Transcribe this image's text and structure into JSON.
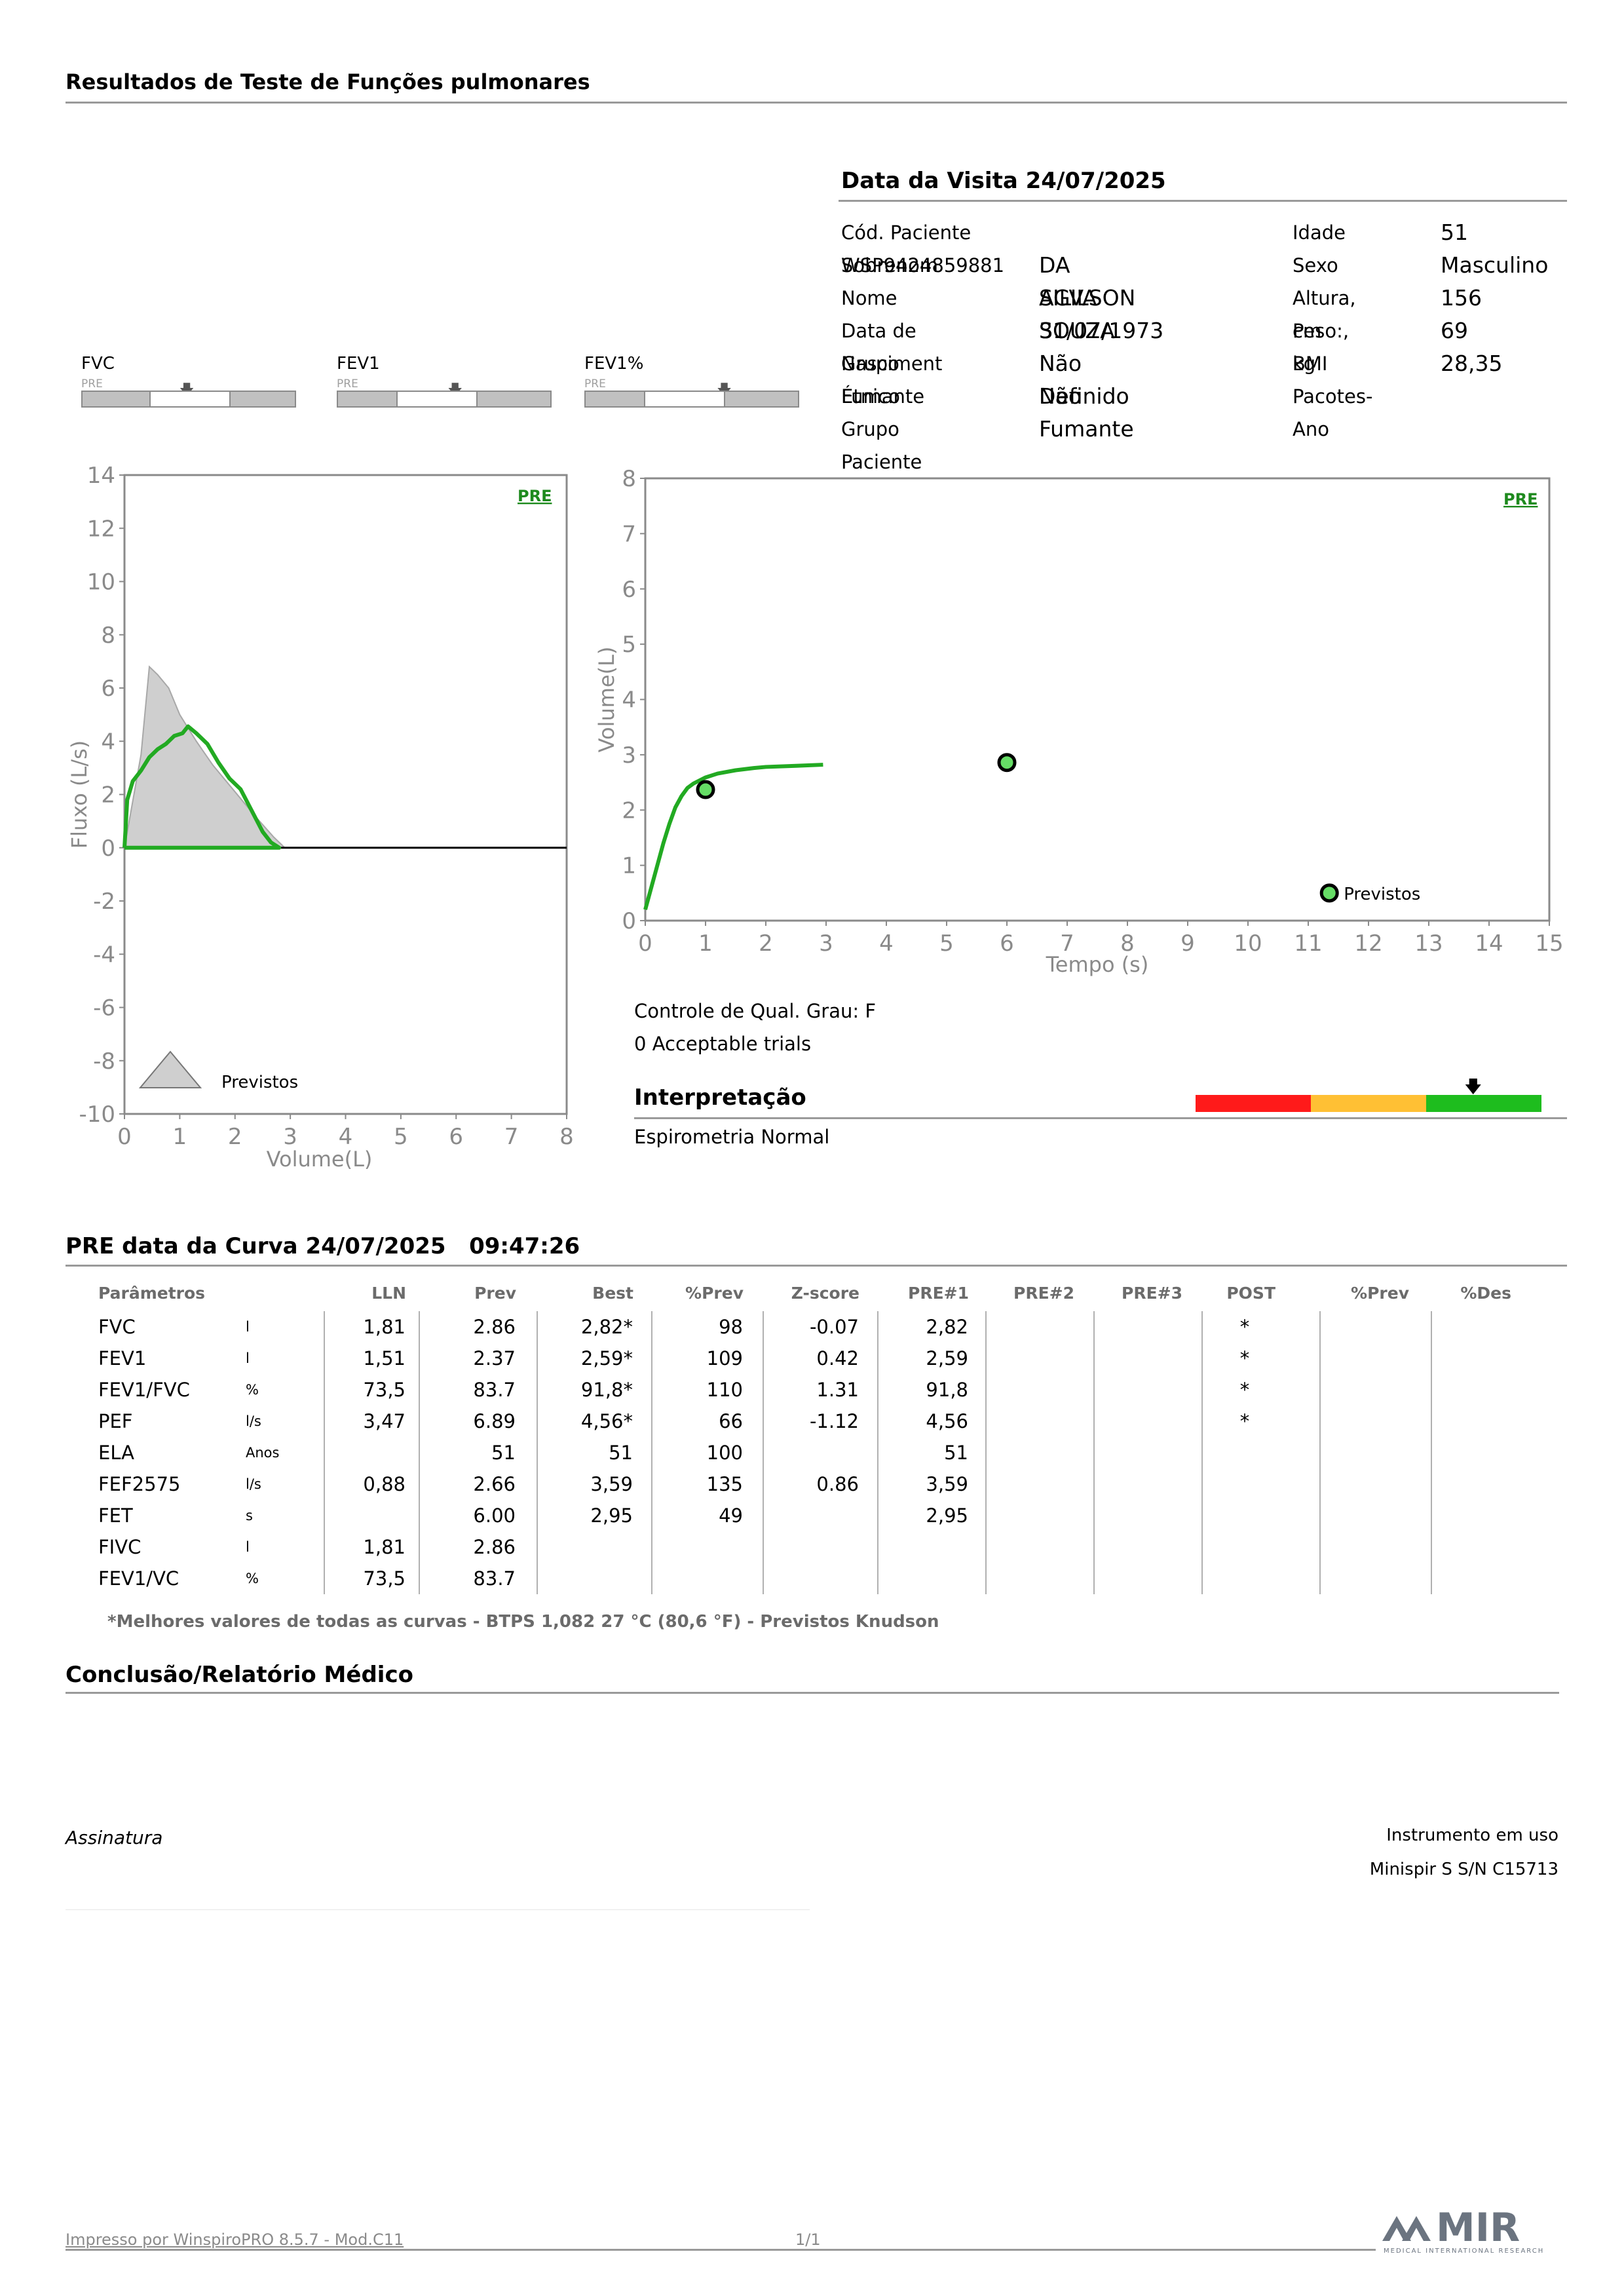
{
  "header": {
    "title": "Resultados de Teste de Funções pulmonares"
  },
  "visit": {
    "title": "Data da Visita 24/07/2025"
  },
  "patient": {
    "left": [
      {
        "label": "Cód. Paciente WSP9424859881",
        "value": ""
      },
      {
        "label": "Sobrenom",
        "value": "DA SILVA SOUZA"
      },
      {
        "label": "Nome",
        "value": "AGILSON"
      },
      {
        "label": "Data de Nasciment",
        "value": "31/07/1973"
      },
      {
        "label": "Grupo Étnico",
        "value": "Não Definido"
      },
      {
        "label": "Fumante",
        "value": "Não Fumante"
      },
      {
        "label": "Grupo Paciente",
        "value": ""
      }
    ],
    "right": [
      {
        "label": "Idade",
        "value": "51"
      },
      {
        "label": "Sexo",
        "value": "Masculino"
      },
      {
        "label": "Altura, cm",
        "value": "156"
      },
      {
        "label": "Peso:, kg",
        "value": "69"
      },
      {
        "label": "BMI",
        "value": "28,35"
      },
      {
        "label": "Pacotes-Ano",
        "value": ""
      }
    ]
  },
  "gauges": [
    {
      "name": "FVC",
      "tag": "PRE",
      "white_from": 0.31,
      "white_to": 0.69,
      "arrow_at": 0.49
    },
    {
      "name": "FEV1",
      "tag": "PRE",
      "white_from": 0.27,
      "white_to": 0.65,
      "arrow_at": 0.55
    },
    {
      "name": "FEV1%",
      "tag": "PRE",
      "white_from": 0.27,
      "white_to": 0.65,
      "arrow_at": 0.65
    }
  ],
  "chart_data": [
    {
      "type": "line",
      "name": "flow-volume",
      "ylabel": "Fluxo (L/s)",
      "xlabel": "Volume(L)",
      "xlim": [
        0,
        8
      ],
      "ylim": [
        -10,
        14
      ],
      "xticks": [
        "0",
        "1",
        "2",
        "3",
        "4",
        "5",
        "6",
        "7",
        "8"
      ],
      "yticks": [
        "14",
        "12",
        "10",
        "8",
        "6",
        "4",
        "2",
        "0",
        "-2",
        "-4",
        "-6",
        "-8",
        "-10"
      ],
      "tag": "PRE",
      "legend": "Previstos",
      "predicted_area": {
        "x": [
          0,
          0.3,
          0.45,
          0.6,
          0.8,
          1.0,
          1.3,
          1.6,
          2.0,
          2.4,
          2.7,
          2.9
        ],
        "y": [
          0,
          3.5,
          6.8,
          6.5,
          6.0,
          5.0,
          4.0,
          3.1,
          2.1,
          1.1,
          0.4,
          0
        ]
      },
      "series": [
        {
          "name": "PRE",
          "color": "#22aa22",
          "x": [
            0,
            0.05,
            0.15,
            0.3,
            0.45,
            0.6,
            0.75,
            0.9,
            1.05,
            1.15,
            1.3,
            1.5,
            1.7,
            1.9,
            2.1,
            2.3,
            2.5,
            2.65,
            2.8,
            2.3,
            1.5,
            0.6,
            0
          ],
          "y": [
            0,
            1.8,
            2.5,
            2.9,
            3.4,
            3.7,
            3.9,
            4.2,
            4.3,
            4.56,
            4.3,
            3.9,
            3.2,
            2.6,
            2.2,
            1.4,
            0.6,
            0.2,
            0,
            0,
            0,
            0,
            0
          ]
        }
      ]
    },
    {
      "type": "line",
      "name": "volume-time",
      "ylabel": "Volume(L)",
      "xlabel": "Tempo (s)",
      "xlim": [
        0,
        15
      ],
      "ylim": [
        0,
        8
      ],
      "xticks": [
        "0",
        "1",
        "2",
        "3",
        "4",
        "5",
        "6",
        "7",
        "8",
        "9",
        "10",
        "11",
        "12",
        "13",
        "14",
        "15"
      ],
      "yticks": [
        "8",
        "7",
        "6",
        "5",
        "4",
        "3",
        "2",
        "1",
        "0"
      ],
      "tag": "PRE",
      "legend": "Previstos",
      "predicted_points": [
        {
          "x": 1.0,
          "y": 2.37
        },
        {
          "x": 6.0,
          "y": 2.86
        }
      ],
      "series": [
        {
          "name": "PRE",
          "color": "#22aa22",
          "x": [
            0,
            0.1,
            0.2,
            0.3,
            0.4,
            0.5,
            0.6,
            0.7,
            0.8,
            1.0,
            1.2,
            1.5,
            1.8,
            2.0,
            2.5,
            2.95
          ],
          "y": [
            0.2,
            0.6,
            1.0,
            1.4,
            1.75,
            2.05,
            2.25,
            2.4,
            2.48,
            2.59,
            2.66,
            2.72,
            2.76,
            2.78,
            2.8,
            2.82
          ]
        }
      ]
    }
  ],
  "quality": {
    "grade": "Controle de Qual. Grau: F",
    "trials": "0 Acceptable trials"
  },
  "interpretation": {
    "title": "Interpretação",
    "text": "Espirometria Normal",
    "colors": [
      "#ff1a1a",
      "#ffc034",
      "#1ebd1e"
    ],
    "arrow_at": 0.8
  },
  "curve": {
    "title": "PRE data da Curva 24/07/2025   09:47:26"
  },
  "table": {
    "headers": [
      "Parâmetros",
      "",
      "LLN",
      "Prev",
      "Best",
      "%Prev",
      "Z-score",
      "PRE#1",
      "PRE#2",
      "PRE#3",
      "POST",
      "%Prev",
      "%Des"
    ],
    "rows": [
      [
        "FVC",
        "l",
        "1,81",
        "2.86",
        "2,82*",
        "98",
        "-0.07",
        "2,82",
        "",
        "",
        "*",
        "",
        ""
      ],
      [
        "FEV1",
        "l",
        "1,51",
        "2.37",
        "2,59*",
        "109",
        "0.42",
        "2,59",
        "",
        "",
        "*",
        "",
        ""
      ],
      [
        "FEV1/FVC",
        "%",
        "73,5",
        "83.7",
        "91,8*",
        "110",
        "1.31",
        "91,8",
        "",
        "",
        "*",
        "",
        ""
      ],
      [
        "PEF",
        "l/s",
        "3,47",
        "6.89",
        "4,56*",
        "66",
        "-1.12",
        "4,56",
        "",
        "",
        "*",
        "",
        ""
      ],
      [
        "ELA",
        "Anos",
        "",
        "51",
        "51",
        "100",
        "",
        "51",
        "",
        "",
        "",
        "",
        ""
      ],
      [
        "FEF2575",
        "l/s",
        "0,88",
        "2.66",
        "3,59",
        "135",
        "0.86",
        "3,59",
        "",
        "",
        "",
        "",
        ""
      ],
      [
        "FET",
        "s",
        "",
        "6.00",
        "2,95",
        "49",
        "",
        "2,95",
        "",
        "",
        "",
        "",
        ""
      ],
      [
        "FIVC",
        "l",
        "1,81",
        "2.86",
        "",
        "",
        "",
        "",
        "",
        "",
        "",
        "",
        ""
      ],
      [
        "FEV1/VC",
        "%",
        "73,5",
        "83.7",
        "",
        "",
        "",
        "",
        "",
        "",
        "",
        "",
        ""
      ]
    ],
    "footnote": "*Melhores valores de todas as curvas - BTPS  1,082  27 °C  (80,6 °F) - Previstos Knudson"
  },
  "conclusion": {
    "title": "Conclusão/Relatório Médico"
  },
  "signature": {
    "label": "Assinatura"
  },
  "instrument": {
    "title": "Instrumento em uso",
    "model": "Minispir S S/N C15713"
  },
  "footer": {
    "printed_by": "Impresso por WinspiroPRO  8.5.7 - Mod.C11",
    "page": "1/1"
  },
  "logo": {
    "text": "MIR",
    "subtext": "MEDICAL INTERNATIONAL RESEARCH"
  }
}
